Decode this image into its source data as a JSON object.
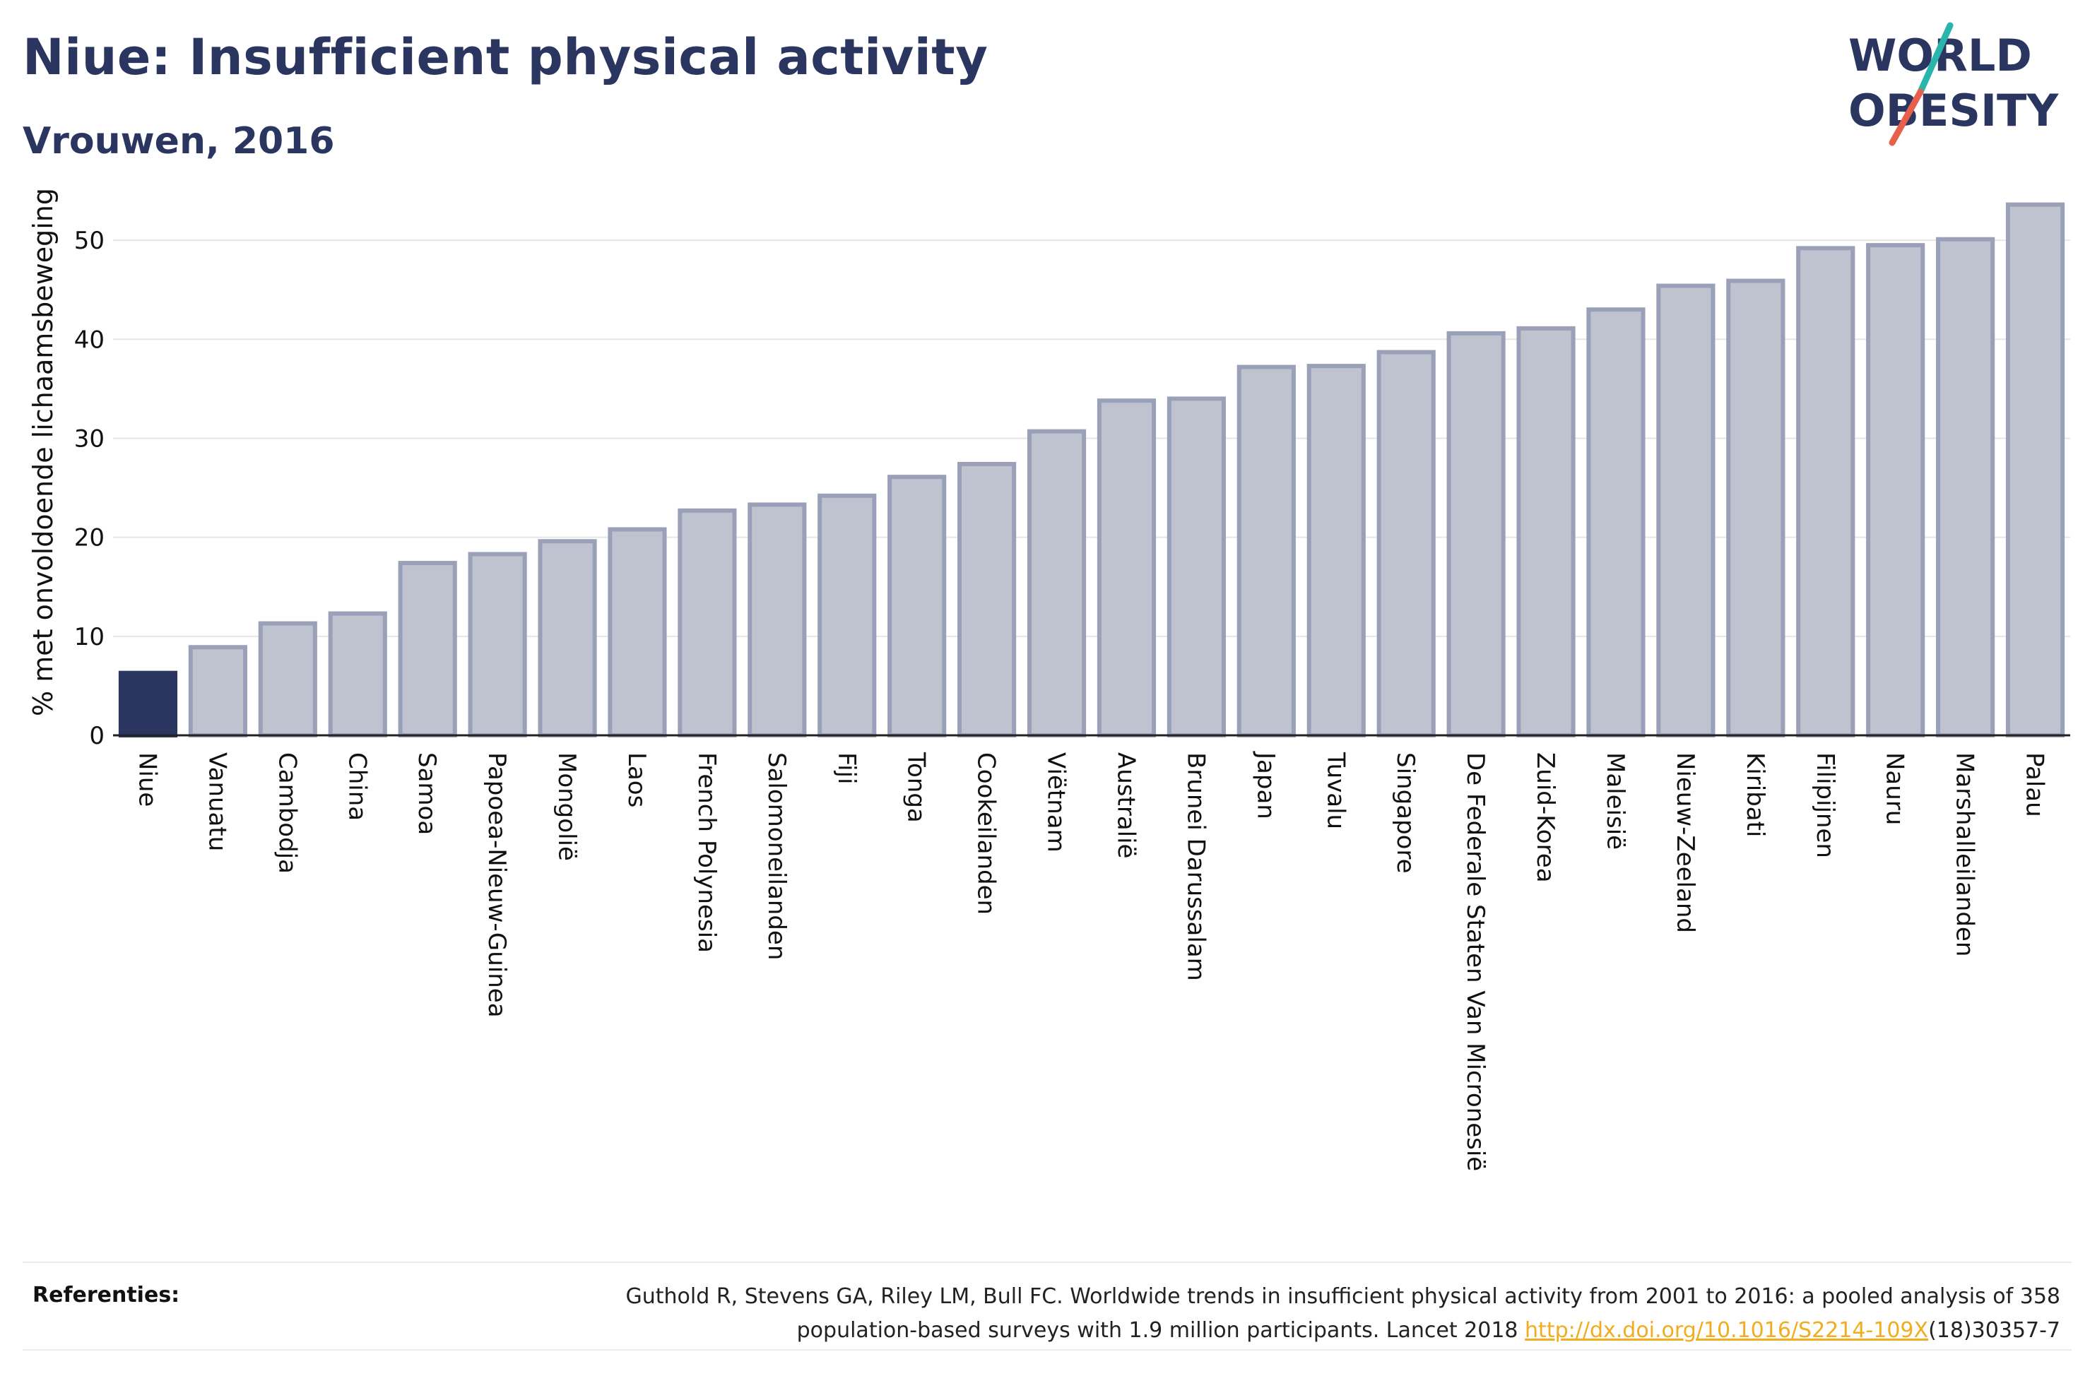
{
  "header": {
    "title": "Niue: Insufficient physical activity",
    "subtitle": "Vrouwen, 2016"
  },
  "logo": {
    "line1": "WORLD",
    "line2": "OBESITY",
    "colors": {
      "text": "#2b3660",
      "slash_top": "#2ab5ac",
      "slash_bottom": "#e8604c"
    }
  },
  "chart_data": {
    "type": "bar",
    "ylabel": "% met onvoldoende lichaamsbeweging",
    "xlabel": "",
    "ylim": [
      0,
      56
    ],
    "yticks": [
      0,
      10,
      20,
      30,
      40,
      50
    ],
    "grid": true,
    "highlight": "Niue",
    "colors": {
      "highlight": "#2b3660",
      "bar": "#bfc3d0",
      "bar_edge": "#9aa0b8",
      "grid": "#e6e6e6"
    },
    "categories": [
      "Niue",
      "Vanuatu",
      "Cambodja",
      "China",
      "Samoa",
      "Papoea-Nieuw-Guinea",
      "Mongolië",
      "Laos",
      "French Polynesia",
      "Salomoneilanden",
      "Fiji",
      "Tonga",
      "Cookeilanden",
      "Viëtnam",
      "Australië",
      "Brunei Darussalam",
      "Japan",
      "Tuvalu",
      "Singapore",
      "De Federale Staten Van Micronesië",
      "Zuid-Korea",
      "Maleisië",
      "Nieuw-Zeeland",
      "Kiribati",
      "Filipijnen",
      "Nauru",
      "Marshalleilanden",
      "Palau"
    ],
    "values": [
      6.3,
      8.9,
      11.3,
      12.3,
      17.4,
      18.3,
      19.6,
      20.8,
      22.7,
      23.3,
      24.2,
      26.1,
      27.4,
      30.7,
      33.8,
      34.0,
      37.2,
      37.3,
      38.7,
      40.6,
      41.1,
      43.0,
      45.4,
      45.9,
      49.2,
      49.5,
      50.1,
      53.6
    ]
  },
  "references": {
    "heading": "Referenties:",
    "text_line1": "Guthold R, Stevens GA, Riley LM, Bull FC. Worldwide trends in insufficient physical activity from 2001 to 2016: a pooled analysis of 358",
    "text_line2_prefix": "population-based surveys with 1.9 million participants. Lancet 2018 ",
    "link": "http://dx.doi.org/10.1016/S2214-109X",
    "text_line2_suffix": "(18)30357-7"
  }
}
